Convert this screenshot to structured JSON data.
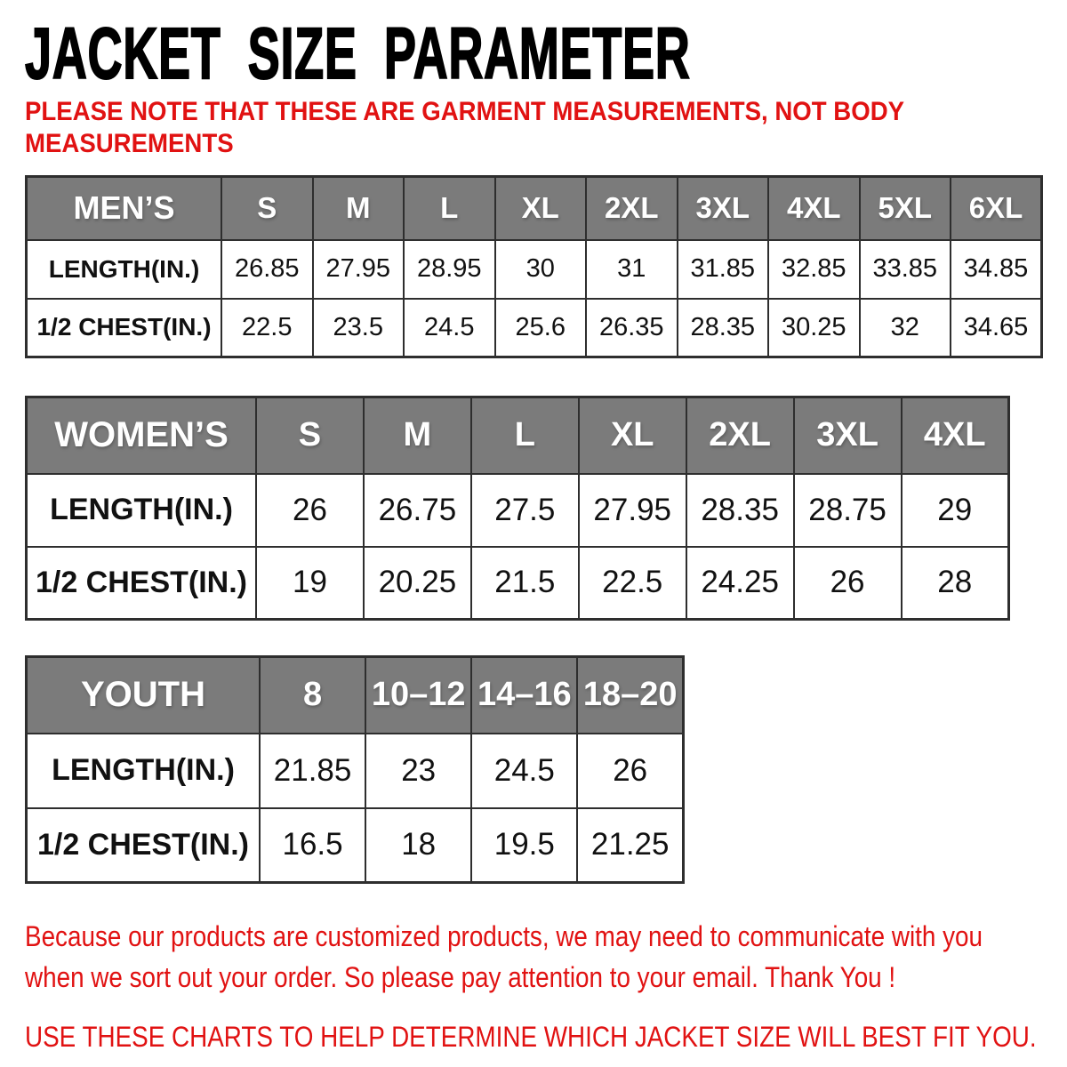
{
  "title": "JACKET SIZE PARAMETER",
  "note": {
    "line1": "PLEASE NOTE THAT THESE ARE GARMENT MEASUREMENTS, NOT BODY",
    "line2": "MEASUREMENTS"
  },
  "tables": [
    {
      "header": "MEN’S",
      "sizes": [
        "S",
        "M",
        "L",
        "XL",
        "2XL",
        "3XL",
        "4XL",
        "5XL",
        "6XL"
      ],
      "rows": [
        {
          "label": "LENGTH(IN.)",
          "values": [
            "26.85",
            "27.95",
            "28.95",
            "30",
            "31",
            "31.85",
            "32.85",
            "33.85",
            "34.85"
          ]
        },
        {
          "label": "1/2 CHEST(IN.)",
          "values": [
            "22.5",
            "23.5",
            "24.5",
            "25.6",
            "26.35",
            "28.35",
            "30.25",
            "32",
            "34.65"
          ]
        }
      ]
    },
    {
      "header": "WOMEN’S",
      "sizes": [
        "S",
        "M",
        "L",
        "XL",
        "2XL",
        "3XL",
        "4XL"
      ],
      "rows": [
        {
          "label": "LENGTH(IN.)",
          "values": [
            "26",
            "26.75",
            "27.5",
            "27.95",
            "28.35",
            "28.75",
            "29"
          ]
        },
        {
          "label": "1/2 CHEST(IN.)",
          "values": [
            "19",
            "20.25",
            "21.5",
            "22.5",
            "24.25",
            "26",
            "28"
          ]
        }
      ]
    },
    {
      "header": "YOUTH",
      "sizes": [
        "8",
        "10–12",
        "14–16",
        "18–20"
      ],
      "rows": [
        {
          "label": "LENGTH(IN.)",
          "values": [
            "21.85",
            "23",
            "24.5",
            "26"
          ]
        },
        {
          "label": "1/2 CHEST(IN.)",
          "values": [
            "16.5",
            "18",
            "19.5",
            "21.25"
          ]
        }
      ]
    }
  ],
  "footer": {
    "para_line1": "Because our products are customized products, we may need to communicate with you",
    "para_line2": "when we sort out your order. So please pay attention to your email. Thank You !",
    "charts_line": "USE THESE CHARTS TO HELP DETERMINE WHICH JACKET SIZE WILL BEST FIT YOU."
  },
  "colors": {
    "accent_red": "#e11212",
    "header_gray": "#7b7b7b",
    "border": "#2e2e2e",
    "header_text": "#ffffff",
    "title_black": "#000000"
  }
}
